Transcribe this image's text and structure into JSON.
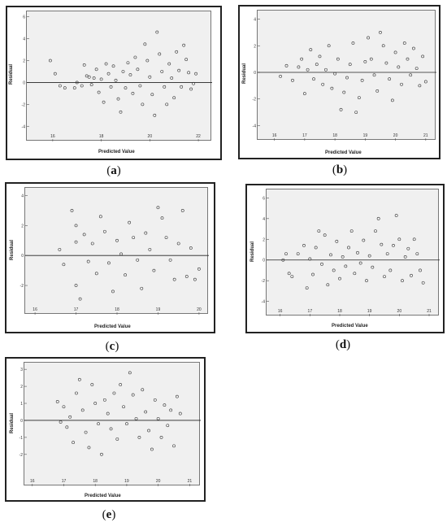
{
  "chart_data": [
    {
      "id": "a",
      "type": "scatter",
      "caption_letter": "a",
      "xlabel": "Predicted Value",
      "ylabel": "Residual",
      "xlim": [
        15,
        22.5
      ],
      "ylim": [
        -4.5,
        6.2
      ],
      "xticks": [
        16,
        18,
        20,
        22
      ],
      "yticks": [
        -4,
        -2,
        0,
        2,
        4,
        6
      ],
      "reference_line_y": 0,
      "points": [
        [
          15.9,
          2.0
        ],
        [
          16.1,
          0.8
        ],
        [
          16.3,
          -0.3
        ],
        [
          16.5,
          -0.5
        ],
        [
          16.9,
          -0.5
        ],
        [
          17.0,
          0.0
        ],
        [
          17.2,
          -0.3
        ],
        [
          17.3,
          1.6
        ],
        [
          17.4,
          0.6
        ],
        [
          17.5,
          0.5
        ],
        [
          17.6,
          -0.2
        ],
        [
          17.7,
          0.4
        ],
        [
          17.8,
          1.2
        ],
        [
          17.9,
          -0.9
        ],
        [
          18.0,
          0.3
        ],
        [
          18.1,
          -1.8
        ],
        [
          18.2,
          1.7
        ],
        [
          18.3,
          0.8
        ],
        [
          18.4,
          -0.4
        ],
        [
          18.5,
          1.5
        ],
        [
          18.6,
          0.2
        ],
        [
          18.7,
          -1.5
        ],
        [
          18.8,
          -2.7
        ],
        [
          18.9,
          1.0
        ],
        [
          19.0,
          -0.5
        ],
        [
          19.1,
          1.8
        ],
        [
          19.2,
          0.7
        ],
        [
          19.3,
          -1.0
        ],
        [
          19.4,
          2.3
        ],
        [
          19.5,
          1.2
        ],
        [
          19.6,
          -0.3
        ],
        [
          19.7,
          -2.0
        ],
        [
          19.8,
          3.5
        ],
        [
          19.9,
          2.0
        ],
        [
          20.0,
          0.5
        ],
        [
          20.1,
          -1.1
        ],
        [
          20.2,
          -3.0
        ],
        [
          20.3,
          4.6
        ],
        [
          20.4,
          2.6
        ],
        [
          20.5,
          1.0
        ],
        [
          20.6,
          -0.4
        ],
        [
          20.7,
          -2.0
        ],
        [
          20.8,
          1.7
        ],
        [
          20.9,
          0.4
        ],
        [
          21.0,
          -1.4
        ],
        [
          21.1,
          2.8
        ],
        [
          21.2,
          1.1
        ],
        [
          21.3,
          -0.4
        ],
        [
          21.4,
          3.4
        ],
        [
          21.5,
          2.1
        ],
        [
          21.6,
          0.9
        ],
        [
          21.7,
          -0.6
        ],
        [
          21.8,
          -0.1
        ],
        [
          21.9,
          0.8
        ]
      ]
    },
    {
      "id": "b",
      "type": "scatter",
      "caption_letter": "b",
      "xlabel": "Predicted Value",
      "ylabel": "Residual",
      "xlim": [
        15.5,
        21.3
      ],
      "ylim": [
        -4.4,
        4.4
      ],
      "xticks": [
        16,
        17,
        18,
        19,
        20,
        21
      ],
      "yticks": [
        -4,
        -2,
        0,
        2,
        4
      ],
      "reference_line_y": 0,
      "points": [
        [
          16.2,
          -0.3
        ],
        [
          16.4,
          0.5
        ],
        [
          16.6,
          -0.6
        ],
        [
          16.8,
          0.4
        ],
        [
          16.9,
          1.0
        ],
        [
          17.0,
          -1.6
        ],
        [
          17.1,
          0.2
        ],
        [
          17.2,
          1.7
        ],
        [
          17.3,
          -0.5
        ],
        [
          17.4,
          0.6
        ],
        [
          17.5,
          1.2
        ],
        [
          17.6,
          -0.9
        ],
        [
          17.7,
          0.2
        ],
        [
          17.8,
          2.0
        ],
        [
          17.9,
          -1.2
        ],
        [
          18.0,
          -0.1
        ],
        [
          18.1,
          1.0
        ],
        [
          18.2,
          -2.8
        ],
        [
          18.3,
          -1.5
        ],
        [
          18.4,
          -0.4
        ],
        [
          18.5,
          0.6
        ],
        [
          18.6,
          2.2
        ],
        [
          18.7,
          -3.0
        ],
        [
          18.8,
          -1.9
        ],
        [
          18.9,
          -0.6
        ],
        [
          19.0,
          0.8
        ],
        [
          19.1,
          2.6
        ],
        [
          19.2,
          1.0
        ],
        [
          19.3,
          -0.2
        ],
        [
          19.4,
          -1.4
        ],
        [
          19.5,
          3.0
        ],
        [
          19.6,
          2.0
        ],
        [
          19.7,
          0.7
        ],
        [
          19.8,
          -0.5
        ],
        [
          19.9,
          -2.1
        ],
        [
          20.0,
          1.5
        ],
        [
          20.1,
          0.4
        ],
        [
          20.2,
          -0.9
        ],
        [
          20.3,
          2.2
        ],
        [
          20.4,
          1.0
        ],
        [
          20.5,
          -0.2
        ],
        [
          20.6,
          1.8
        ],
        [
          20.7,
          0.3
        ],
        [
          20.8,
          -1.0
        ],
        [
          20.9,
          1.2
        ],
        [
          21.0,
          -0.7
        ]
      ]
    },
    {
      "id": "c",
      "type": "scatter",
      "caption_letter": "c",
      "xlabel": "Predicted Value",
      "ylabel": "Residual",
      "xlim": [
        15.8,
        20.2
      ],
      "ylim": [
        -3.3,
        4.3
      ],
      "xticks": [
        16,
        17,
        18,
        19,
        20
      ],
      "yticks": [
        -2,
        0,
        2,
        4
      ],
      "reference_line_y": 0,
      "points": [
        [
          16.6,
          0.4
        ],
        [
          16.7,
          -0.6
        ],
        [
          16.9,
          3.0
        ],
        [
          17.0,
          2.0
        ],
        [
          17.0,
          0.9
        ],
        [
          17.0,
          -2.0
        ],
        [
          17.1,
          -2.9
        ],
        [
          17.2,
          1.4
        ],
        [
          17.3,
          -0.4
        ],
        [
          17.4,
          0.8
        ],
        [
          17.5,
          -1.2
        ],
        [
          17.6,
          2.6
        ],
        [
          17.7,
          1.6
        ],
        [
          17.8,
          -0.5
        ],
        [
          17.9,
          -2.4
        ],
        [
          18.0,
          1.0
        ],
        [
          18.1,
          0.1
        ],
        [
          18.2,
          -1.3
        ],
        [
          18.3,
          2.2
        ],
        [
          18.4,
          1.2
        ],
        [
          18.5,
          -0.3
        ],
        [
          18.6,
          -2.2
        ],
        [
          18.7,
          1.5
        ],
        [
          18.8,
          0.4
        ],
        [
          18.9,
          -1.0
        ],
        [
          19.0,
          3.2
        ],
        [
          19.1,
          2.5
        ],
        [
          19.2,
          1.2
        ],
        [
          19.3,
          -0.3
        ],
        [
          19.4,
          -1.6
        ],
        [
          19.5,
          0.8
        ],
        [
          19.6,
          3.0
        ],
        [
          19.7,
          -1.4
        ],
        [
          19.8,
          0.5
        ],
        [
          19.9,
          -1.6
        ],
        [
          20.0,
          -0.9
        ]
      ]
    },
    {
      "id": "d",
      "type": "scatter",
      "caption_letter": "d",
      "xlabel": "Predicted Value",
      "ylabel": "Residual",
      "xlim": [
        15.6,
        21.3
      ],
      "ylim": [
        -4.5,
        6.5
      ],
      "xticks": [
        16,
        17,
        18,
        19,
        20,
        21
      ],
      "yticks": [
        -4,
        -2,
        0,
        2,
        4,
        6
      ],
      "reference_line_y": 0,
      "points": [
        [
          16.1,
          0.0
        ],
        [
          16.2,
          0.6
        ],
        [
          16.3,
          -1.3
        ],
        [
          16.4,
          -1.6
        ],
        [
          16.6,
          0.6
        ],
        [
          16.8,
          1.4
        ],
        [
          16.9,
          -2.7
        ],
        [
          17.0,
          0.1
        ],
        [
          17.1,
          -1.4
        ],
        [
          17.2,
          1.2
        ],
        [
          17.3,
          2.8
        ],
        [
          17.4,
          -0.4
        ],
        [
          17.5,
          2.4
        ],
        [
          17.6,
          -2.4
        ],
        [
          17.7,
          0.5
        ],
        [
          17.8,
          -1.0
        ],
        [
          17.9,
          1.8
        ],
        [
          18.0,
          -1.8
        ],
        [
          18.1,
          0.3
        ],
        [
          18.2,
          -0.6
        ],
        [
          18.3,
          1.2
        ],
        [
          18.4,
          2.8
        ],
        [
          18.5,
          -1.3
        ],
        [
          18.6,
          0.7
        ],
        [
          18.7,
          -0.3
        ],
        [
          18.8,
          1.9
        ],
        [
          18.9,
          -2.0
        ],
        [
          19.0,
          0.4
        ],
        [
          19.1,
          -0.7
        ],
        [
          19.2,
          2.8
        ],
        [
          19.3,
          4.0
        ],
        [
          19.4,
          1.5
        ],
        [
          19.5,
          -1.6
        ],
        [
          19.6,
          0.6
        ],
        [
          19.7,
          -1.0
        ],
        [
          19.8,
          1.4
        ],
        [
          19.9,
          4.3
        ],
        [
          20.0,
          2.0
        ],
        [
          20.1,
          -2.0
        ],
        [
          20.2,
          0.3
        ],
        [
          20.3,
          1.1
        ],
        [
          20.4,
          -1.5
        ],
        [
          20.5,
          2.0
        ],
        [
          20.6,
          0.6
        ],
        [
          20.7,
          -1.0
        ],
        [
          20.8,
          -2.2
        ]
      ]
    },
    {
      "id": "e",
      "type": "scatter",
      "caption_letter": "e",
      "xlabel": "Predicted Value",
      "ylabel": "Residual",
      "xlim": [
        15.8,
        21.3
      ],
      "ylim": [
        -3.3,
        3.2
      ],
      "xticks": [
        16,
        17,
        18,
        19,
        20,
        21
      ],
      "yticks": [
        -2,
        -1,
        0,
        1,
        2,
        3
      ],
      "reference_line_y": 0,
      "points": [
        [
          16.8,
          1.1
        ],
        [
          16.9,
          -0.1
        ],
        [
          17.0,
          0.8
        ],
        [
          17.1,
          -0.4
        ],
        [
          17.2,
          0.2
        ],
        [
          17.3,
          -1.3
        ],
        [
          17.4,
          1.6
        ],
        [
          17.5,
          2.4
        ],
        [
          17.6,
          0.6
        ],
        [
          17.7,
          -0.7
        ],
        [
          17.8,
          -1.6
        ],
        [
          17.9,
          2.1
        ],
        [
          18.0,
          1.0
        ],
        [
          18.1,
          -0.2
        ],
        [
          18.2,
          -2.0
        ],
        [
          18.3,
          1.2
        ],
        [
          18.4,
          0.4
        ],
        [
          18.5,
          -0.5
        ],
        [
          18.6,
          1.6
        ],
        [
          18.7,
          -1.1
        ],
        [
          18.8,
          2.1
        ],
        [
          18.9,
          0.8
        ],
        [
          19.0,
          -0.2
        ],
        [
          19.1,
          2.8
        ],
        [
          19.2,
          1.5
        ],
        [
          19.3,
          0.1
        ],
        [
          19.4,
          -1.0
        ],
        [
          19.5,
          1.8
        ],
        [
          19.6,
          0.5
        ],
        [
          19.7,
          -0.6
        ],
        [
          19.8,
          -1.7
        ],
        [
          19.9,
          1.2
        ],
        [
          20.0,
          0.1
        ],
        [
          20.1,
          -1.0
        ],
        [
          20.2,
          0.9
        ],
        [
          20.3,
          -0.3
        ],
        [
          20.4,
          0.6
        ],
        [
          20.5,
          -1.5
        ],
        [
          20.6,
          1.4
        ],
        [
          20.7,
          0.4
        ]
      ]
    }
  ]
}
